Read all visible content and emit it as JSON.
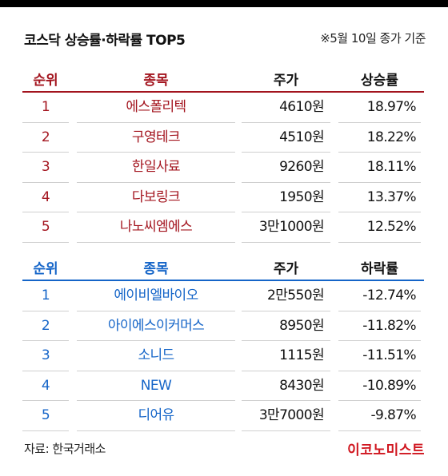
{
  "header": {
    "title": "코스닥 상승률·하락률 TOP5",
    "note": "※5월 10일 종가 기준"
  },
  "gainers": {
    "columns": {
      "rank": "순위",
      "name": "종목",
      "price": "주가",
      "rate": "상승률"
    },
    "rows": [
      {
        "rank": "1",
        "name": "에스폴리텍",
        "price": "4610원",
        "rate": "18.97%"
      },
      {
        "rank": "2",
        "name": "구영테크",
        "price": "4510원",
        "rate": "18.22%"
      },
      {
        "rank": "3",
        "name": "한일사료",
        "price": "9260원",
        "rate": "18.11%"
      },
      {
        "rank": "4",
        "name": "다보링크",
        "price": "1950원",
        "rate": "13.37%"
      },
      {
        "rank": "5",
        "name": "나노씨엠에스",
        "price": "3만1000원",
        "rate": "12.52%"
      }
    ]
  },
  "losers": {
    "columns": {
      "rank": "순위",
      "name": "종목",
      "price": "주가",
      "rate": "하락률"
    },
    "rows": [
      {
        "rank": "1",
        "name": "에이비엘바이오",
        "price": "2만550원",
        "rate": "-12.74%"
      },
      {
        "rank": "2",
        "name": "아이에스이커머스",
        "price": "8950원",
        "rate": "-11.82%"
      },
      {
        "rank": "3",
        "name": "소니드",
        "price": "1115원",
        "rate": "-11.51%"
      },
      {
        "rank": "4",
        "name": "NEW",
        "price": "8430원",
        "rate": "-10.89%"
      },
      {
        "rank": "5",
        "name": "디어유",
        "price": "3만7000원",
        "rate": "-9.87%"
      }
    ]
  },
  "footer": {
    "source": "자료: 한국거래소",
    "brand": "이코노미스트"
  },
  "colors": {
    "gain": "#a3141e",
    "loss": "#1565c8",
    "brand": "#d0161f"
  }
}
